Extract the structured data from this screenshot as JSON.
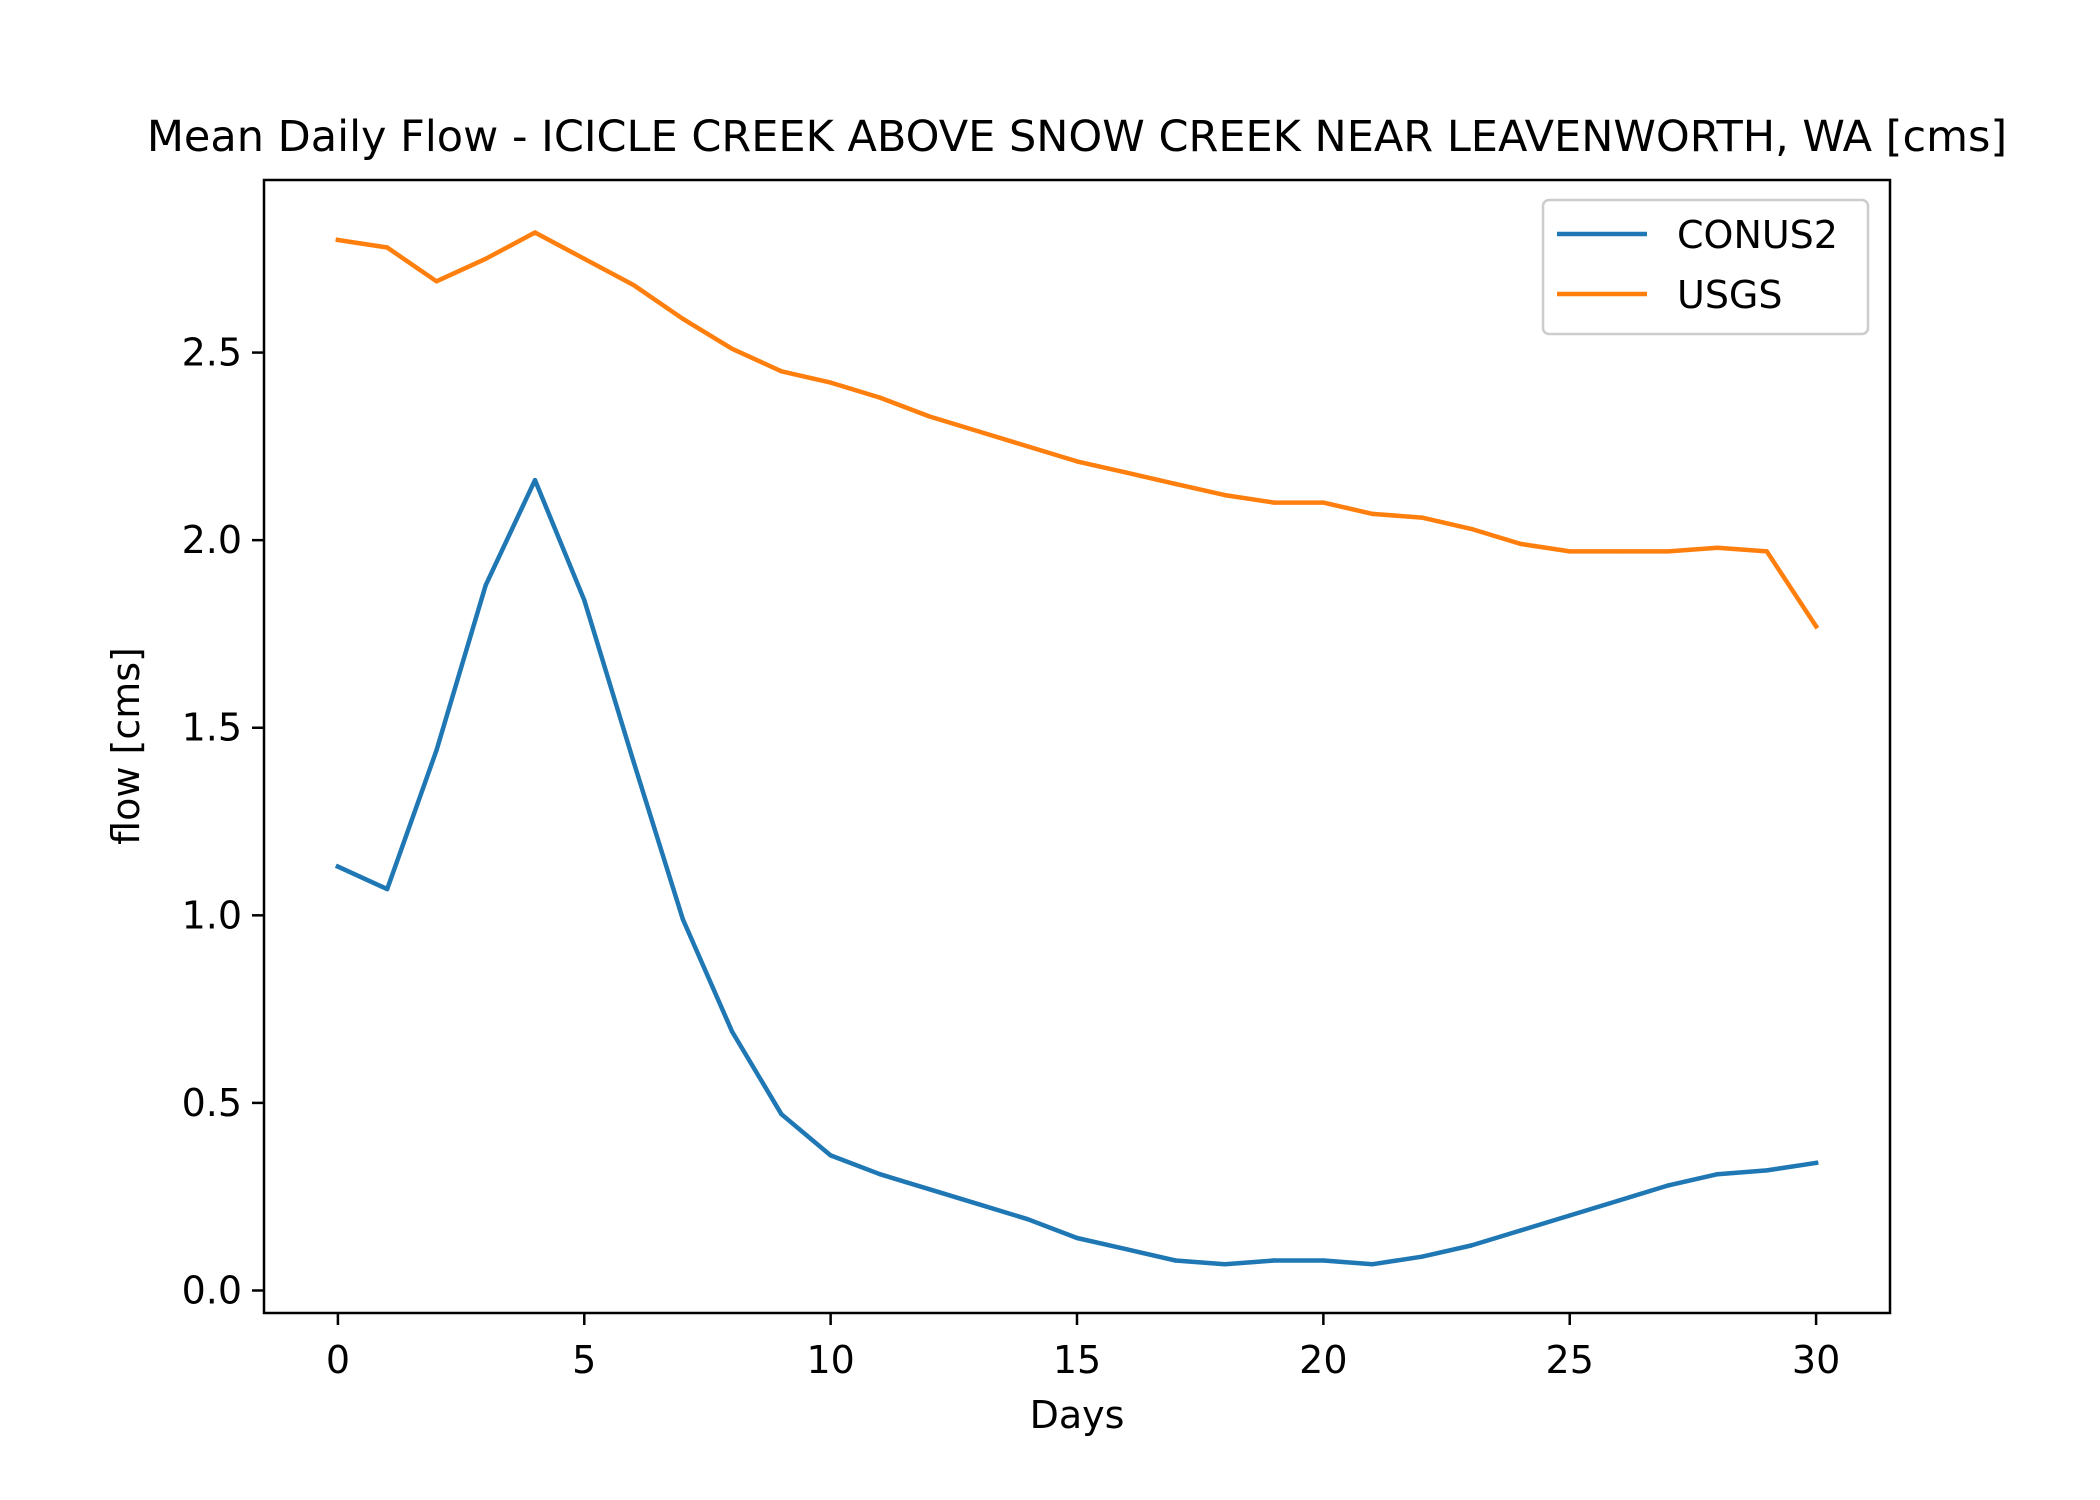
{
  "chart_data": {
    "type": "line",
    "title": "Mean Daily Flow - ICICLE CREEK ABOVE SNOW CREEK NEAR LEAVENWORTH, WA [cms]",
    "xlabel": "Days",
    "ylabel": "flow [cms]",
    "xlim": [
      -1.5,
      31.5
    ],
    "ylim": [
      -0.06,
      2.96
    ],
    "xticks": [
      0,
      5,
      10,
      15,
      20,
      25,
      30
    ],
    "yticks": [
      0.0,
      0.5,
      1.0,
      1.5,
      2.0,
      2.5
    ],
    "xtick_labels": [
      "0",
      "5",
      "10",
      "15",
      "20",
      "25",
      "30"
    ],
    "ytick_labels": [
      "0.0",
      "0.5",
      "1.0",
      "1.5",
      "2.0",
      "2.5"
    ],
    "grid": false,
    "legend_position": "top-right",
    "x": [
      0,
      1,
      2,
      3,
      4,
      5,
      6,
      7,
      8,
      9,
      10,
      11,
      12,
      13,
      14,
      15,
      16,
      17,
      18,
      19,
      20,
      21,
      22,
      23,
      24,
      25,
      26,
      27,
      28,
      29,
      30
    ],
    "series": [
      {
        "name": "CONUS2",
        "color": "#1f77b4",
        "values": [
          1.13,
          1.07,
          1.44,
          1.88,
          2.16,
          1.84,
          1.41,
          0.99,
          0.69,
          0.47,
          0.36,
          0.31,
          0.27,
          0.23,
          0.19,
          0.14,
          0.11,
          0.08,
          0.07,
          0.08,
          0.08,
          0.07,
          0.09,
          0.12,
          0.16,
          0.2,
          0.24,
          0.28,
          0.31,
          0.32,
          0.34
        ]
      },
      {
        "name": "USGS",
        "color": "#ff7f0e",
        "values": [
          2.8,
          2.78,
          2.69,
          2.75,
          2.82,
          2.75,
          2.68,
          2.59,
          2.51,
          2.45,
          2.42,
          2.38,
          2.33,
          2.29,
          2.25,
          2.21,
          2.18,
          2.15,
          2.12,
          2.1,
          2.1,
          2.07,
          2.06,
          2.03,
          1.99,
          1.97,
          1.97,
          1.97,
          1.98,
          1.97,
          1.77
        ]
      }
    ]
  }
}
